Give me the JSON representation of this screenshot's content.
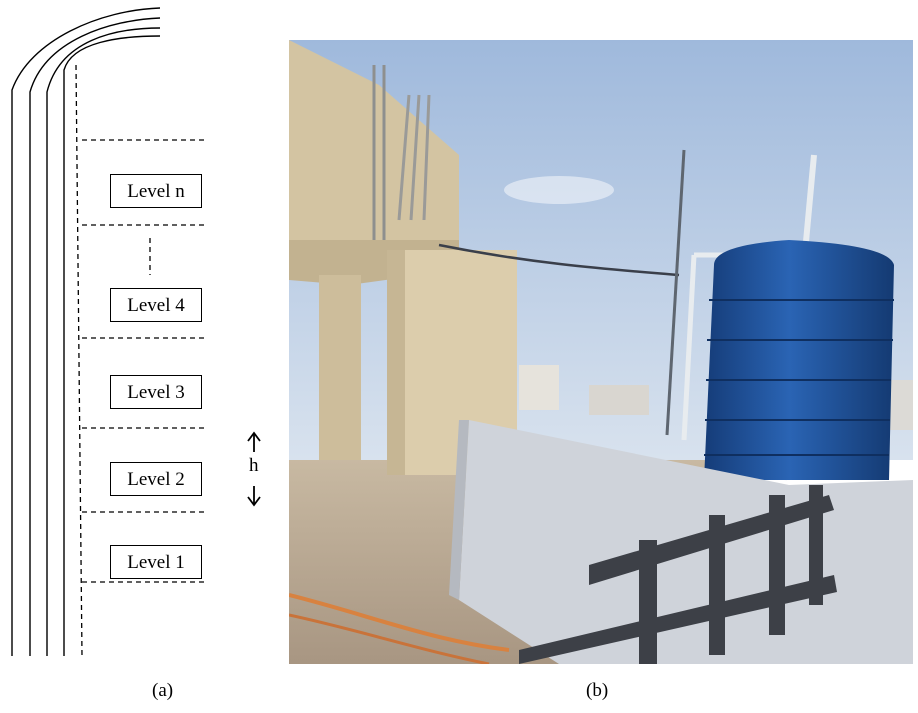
{
  "panel_a": {
    "levels": [
      "Level n",
      "Level 4",
      "Level 3",
      "Level 2",
      "Level 1"
    ],
    "height_label": "h",
    "caption": "(a)"
  },
  "panel_b": {
    "caption": "(b)"
  },
  "colors": {
    "sky": "#b9cde8",
    "tank": "#1c4f9a",
    "concrete": "#d6c8aa",
    "parapet": "#cfd3da",
    "railing": "#3c3e44",
    "floor": "#b9a894"
  }
}
